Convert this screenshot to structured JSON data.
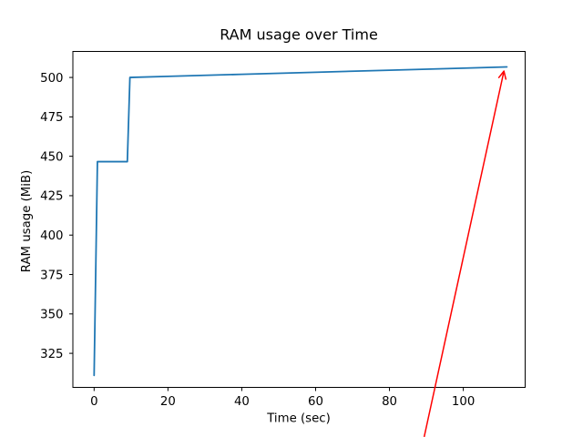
{
  "chart_data": {
    "type": "line",
    "title": "RAM usage over Time",
    "xlabel": "Time (sec)",
    "ylabel": "RAM usage (MiB)",
    "xlim": [
      -5.75,
      116.75
    ],
    "ylim": [
      303.4,
      516.5
    ],
    "x_ticks": [
      0,
      20,
      40,
      60,
      80,
      100
    ],
    "y_ticks": [
      325,
      350,
      375,
      400,
      425,
      450,
      475,
      500
    ],
    "grid": false,
    "legend": null,
    "axis_color": "#000000",
    "series": [
      {
        "color": "#1f77b4",
        "points": [
          [
            0,
            311
          ],
          [
            0.9,
            446.6
          ],
          [
            9,
            446.6
          ],
          [
            9.7,
            500
          ],
          [
            20,
            500.7
          ],
          [
            40,
            502.0
          ],
          [
            60,
            503.3
          ],
          [
            80,
            504.6
          ],
          [
            100,
            505.9
          ],
          [
            111.8,
            506.7
          ]
        ]
      }
    ],
    "annotation": {
      "type": "arrow",
      "color": "#ff0000",
      "tail": [
        89.4,
        272
      ],
      "tip": [
        111,
        504
      ]
    }
  }
}
